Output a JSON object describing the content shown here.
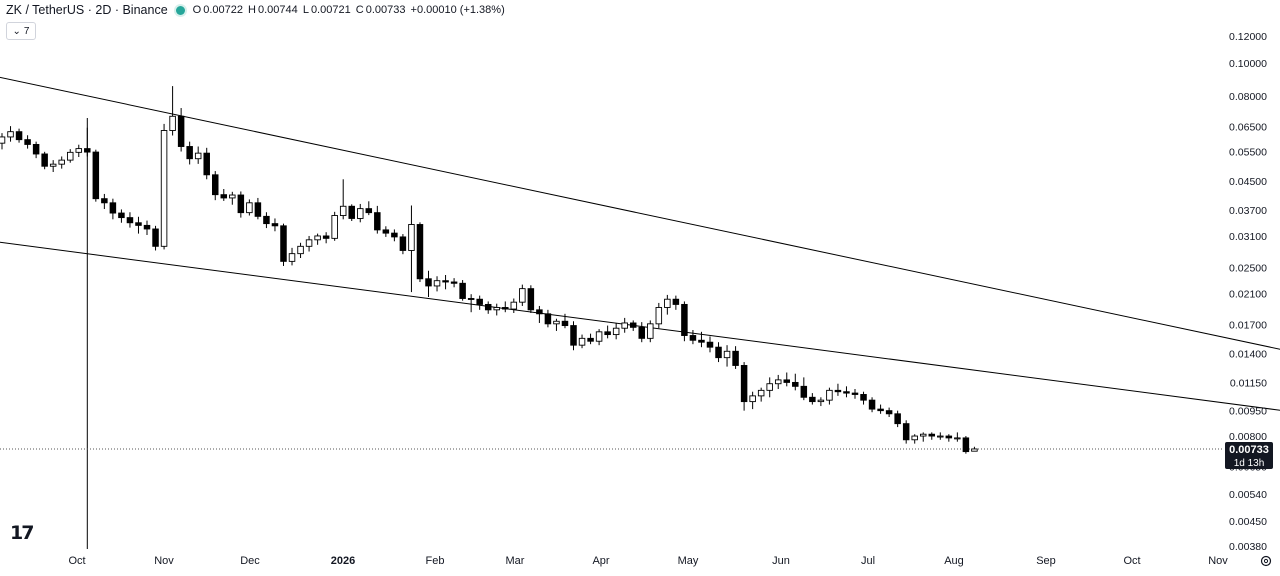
{
  "header": {
    "symbol": "ZK / TetherUS · 2D · Binance",
    "open_label": "O",
    "open": "0.00722",
    "high_label": "H",
    "high": "0.00744",
    "low_label": "L",
    "low": "0.00721",
    "close_label": "C",
    "close": "0.00733",
    "change": "+0.00010 (+1.38%)",
    "indicator_count": "7"
  },
  "colors": {
    "up": "#ffffff",
    "down": "#000000",
    "outline": "#000000",
    "trendline": "#000000",
    "price_tag_bg": "#131722",
    "price_tag_fg": "#ffffff"
  },
  "price_tag": {
    "price": "0.00733",
    "countdown": "1d 13h"
  },
  "logo_text": "17",
  "chart_data": {
    "type": "candlestick",
    "title": "",
    "xlabel": "",
    "ylabel": "",
    "y_scale": "log",
    "ylim": [
      0.0038,
      0.125
    ],
    "grid": false,
    "y_ticks": [
      "0.12000",
      "0.10000",
      "0.08000",
      "0.06500",
      "0.05500",
      "0.04500",
      "0.03700",
      "0.03100",
      "0.02500",
      "0.02100",
      "0.01700",
      "0.01400",
      "0.01150",
      "0.00950",
      "0.00800",
      "0.00650",
      "0.00540",
      "0.00450",
      "0.00380"
    ],
    "x_ticks": [
      "Oct",
      "Nov",
      "Dec",
      "2026",
      "Feb",
      "Mar",
      "Apr",
      "May",
      "Jun",
      "Jul",
      "Aug",
      "Sep",
      "Oct",
      "Nov"
    ],
    "last_price": 0.00733,
    "candles": [
      {
        "o": 0.0581,
        "h": 0.0622,
        "l": 0.0557,
        "c": 0.0606
      },
      {
        "o": 0.0606,
        "h": 0.0652,
        "l": 0.0587,
        "c": 0.0628
      },
      {
        "o": 0.0628,
        "h": 0.0641,
        "l": 0.0583,
        "c": 0.0595
      },
      {
        "o": 0.0595,
        "h": 0.0613,
        "l": 0.056,
        "c": 0.0576
      },
      {
        "o": 0.0576,
        "h": 0.0587,
        "l": 0.0525,
        "c": 0.054
      },
      {
        "o": 0.054,
        "h": 0.0548,
        "l": 0.0487,
        "c": 0.0497
      },
      {
        "o": 0.0497,
        "h": 0.0518,
        "l": 0.0478,
        "c": 0.0504
      },
      {
        "o": 0.0504,
        "h": 0.0531,
        "l": 0.0489,
        "c": 0.0518
      },
      {
        "o": 0.0518,
        "h": 0.0558,
        "l": 0.0509,
        "c": 0.0546
      },
      {
        "o": 0.0546,
        "h": 0.0575,
        "l": 0.0529,
        "c": 0.056
      },
      {
        "o": 0.056,
        "h": 0.0645,
        "l": 0.0531,
        "c": 0.0547
      },
      {
        "o": 0.0547,
        "h": 0.0556,
        "l": 0.0391,
        "c": 0.0399
      },
      {
        "o": 0.0399,
        "h": 0.0412,
        "l": 0.0372,
        "c": 0.0388
      },
      {
        "o": 0.0388,
        "h": 0.0399,
        "l": 0.0347,
        "c": 0.0362
      },
      {
        "o": 0.0362,
        "h": 0.0371,
        "l": 0.0339,
        "c": 0.0351
      },
      {
        "o": 0.0351,
        "h": 0.0364,
        "l": 0.0328,
        "c": 0.0339
      },
      {
        "o": 0.0339,
        "h": 0.0353,
        "l": 0.0315,
        "c": 0.0333
      },
      {
        "o": 0.0333,
        "h": 0.0344,
        "l": 0.0312,
        "c": 0.0325
      },
      {
        "o": 0.0325,
        "h": 0.0332,
        "l": 0.0281,
        "c": 0.0289
      },
      {
        "o": 0.0289,
        "h": 0.0662,
        "l": 0.0283,
        "c": 0.0633
      },
      {
        "o": 0.0633,
        "h": 0.0855,
        "l": 0.0612,
        "c": 0.0697
      },
      {
        "o": 0.0697,
        "h": 0.0737,
        "l": 0.0549,
        "c": 0.0568
      },
      {
        "o": 0.0568,
        "h": 0.0587,
        "l": 0.0503,
        "c": 0.0523
      },
      {
        "o": 0.0523,
        "h": 0.0568,
        "l": 0.0505,
        "c": 0.0543
      },
      {
        "o": 0.0543,
        "h": 0.0563,
        "l": 0.0455,
        "c": 0.0469
      },
      {
        "o": 0.0469,
        "h": 0.0481,
        "l": 0.0395,
        "c": 0.041
      },
      {
        "o": 0.041,
        "h": 0.0426,
        "l": 0.0393,
        "c": 0.0401
      },
      {
        "o": 0.0401,
        "h": 0.0418,
        "l": 0.0383,
        "c": 0.0409
      },
      {
        "o": 0.0409,
        "h": 0.0419,
        "l": 0.0351,
        "c": 0.0363
      },
      {
        "o": 0.0363,
        "h": 0.0397,
        "l": 0.0356,
        "c": 0.0388
      },
      {
        "o": 0.0388,
        "h": 0.0401,
        "l": 0.0347,
        "c": 0.0354
      },
      {
        "o": 0.0354,
        "h": 0.0364,
        "l": 0.0327,
        "c": 0.0337
      },
      {
        "o": 0.0337,
        "h": 0.0349,
        "l": 0.032,
        "c": 0.0332
      },
      {
        "o": 0.0332,
        "h": 0.0337,
        "l": 0.0253,
        "c": 0.0261
      },
      {
        "o": 0.0261,
        "h": 0.0286,
        "l": 0.0254,
        "c": 0.0275
      },
      {
        "o": 0.0275,
        "h": 0.0296,
        "l": 0.0267,
        "c": 0.0289
      },
      {
        "o": 0.0289,
        "h": 0.031,
        "l": 0.0279,
        "c": 0.0302
      },
      {
        "o": 0.0302,
        "h": 0.0315,
        "l": 0.0292,
        "c": 0.031
      },
      {
        "o": 0.031,
        "h": 0.0318,
        "l": 0.0295,
        "c": 0.0305
      },
      {
        "o": 0.0305,
        "h": 0.0365,
        "l": 0.03,
        "c": 0.0356
      },
      {
        "o": 0.0356,
        "h": 0.0455,
        "l": 0.0347,
        "c": 0.0379
      },
      {
        "o": 0.0379,
        "h": 0.0384,
        "l": 0.0343,
        "c": 0.0349
      },
      {
        "o": 0.0349,
        "h": 0.0385,
        "l": 0.034,
        "c": 0.0373
      },
      {
        "o": 0.0373,
        "h": 0.0392,
        "l": 0.0357,
        "c": 0.0363
      },
      {
        "o": 0.0363,
        "h": 0.038,
        "l": 0.0315,
        "c": 0.0323
      },
      {
        "o": 0.0323,
        "h": 0.0331,
        "l": 0.0308,
        "c": 0.0316
      },
      {
        "o": 0.0316,
        "h": 0.0324,
        "l": 0.0299,
        "c": 0.0308
      },
      {
        "o": 0.0308,
        "h": 0.0314,
        "l": 0.0274,
        "c": 0.0281
      },
      {
        "o": 0.0281,
        "h": 0.0381,
        "l": 0.0212,
        "c": 0.0335
      },
      {
        "o": 0.0335,
        "h": 0.034,
        "l": 0.0227,
        "c": 0.0232
      },
      {
        "o": 0.0232,
        "h": 0.0245,
        "l": 0.0205,
        "c": 0.0221
      },
      {
        "o": 0.0221,
        "h": 0.0236,
        "l": 0.0213,
        "c": 0.0229
      },
      {
        "o": 0.0229,
        "h": 0.0238,
        "l": 0.0216,
        "c": 0.0227
      },
      {
        "o": 0.0227,
        "h": 0.0233,
        "l": 0.0219,
        "c": 0.0225
      },
      {
        "o": 0.0225,
        "h": 0.023,
        "l": 0.02,
        "c": 0.0203
      },
      {
        "o": 0.0203,
        "h": 0.0209,
        "l": 0.0185,
        "c": 0.0202
      },
      {
        "o": 0.0202,
        "h": 0.0207,
        "l": 0.0188,
        "c": 0.0195
      },
      {
        "o": 0.0195,
        "h": 0.0199,
        "l": 0.0183,
        "c": 0.0188
      },
      {
        "o": 0.0188,
        "h": 0.0196,
        "l": 0.0181,
        "c": 0.0191
      },
      {
        "o": 0.0191,
        "h": 0.0199,
        "l": 0.0185,
        "c": 0.0189
      },
      {
        "o": 0.0189,
        "h": 0.0203,
        "l": 0.0184,
        "c": 0.0198
      },
      {
        "o": 0.0198,
        "h": 0.0223,
        "l": 0.0193,
        "c": 0.0217
      },
      {
        "o": 0.0217,
        "h": 0.0222,
        "l": 0.0184,
        "c": 0.0188
      },
      {
        "o": 0.0188,
        "h": 0.0193,
        "l": 0.0172,
        "c": 0.0183
      },
      {
        "o": 0.0183,
        "h": 0.0188,
        "l": 0.0167,
        "c": 0.0171
      },
      {
        "o": 0.0171,
        "h": 0.0177,
        "l": 0.0163,
        "c": 0.0174
      },
      {
        "o": 0.0174,
        "h": 0.0183,
        "l": 0.0166,
        "c": 0.0169
      },
      {
        "o": 0.0169,
        "h": 0.0174,
        "l": 0.0143,
        "c": 0.0148
      },
      {
        "o": 0.0148,
        "h": 0.0159,
        "l": 0.0145,
        "c": 0.0155
      },
      {
        "o": 0.0155,
        "h": 0.016,
        "l": 0.0149,
        "c": 0.0152
      },
      {
        "o": 0.0152,
        "h": 0.0165,
        "l": 0.0148,
        "c": 0.0162
      },
      {
        "o": 0.0162,
        "h": 0.0169,
        "l": 0.0155,
        "c": 0.0159
      },
      {
        "o": 0.0159,
        "h": 0.0172,
        "l": 0.0154,
        "c": 0.0166
      },
      {
        "o": 0.0166,
        "h": 0.0178,
        "l": 0.0161,
        "c": 0.0172
      },
      {
        "o": 0.0172,
        "h": 0.0175,
        "l": 0.0163,
        "c": 0.0167
      },
      {
        "o": 0.0167,
        "h": 0.0173,
        "l": 0.0151,
        "c": 0.0155
      },
      {
        "o": 0.0155,
        "h": 0.0175,
        "l": 0.0151,
        "c": 0.0171
      },
      {
        "o": 0.0171,
        "h": 0.0197,
        "l": 0.0166,
        "c": 0.0191
      },
      {
        "o": 0.0191,
        "h": 0.0208,
        "l": 0.0182,
        "c": 0.0202
      },
      {
        "o": 0.0202,
        "h": 0.0207,
        "l": 0.0188,
        "c": 0.0195
      },
      {
        "o": 0.0195,
        "h": 0.0199,
        "l": 0.0152,
        "c": 0.0158
      },
      {
        "o": 0.0158,
        "h": 0.0164,
        "l": 0.0149,
        "c": 0.0153
      },
      {
        "o": 0.0153,
        "h": 0.0162,
        "l": 0.0146,
        "c": 0.0151
      },
      {
        "o": 0.0151,
        "h": 0.0157,
        "l": 0.0141,
        "c": 0.0146
      },
      {
        "o": 0.0146,
        "h": 0.0151,
        "l": 0.0132,
        "c": 0.0136
      },
      {
        "o": 0.0136,
        "h": 0.0148,
        "l": 0.0128,
        "c": 0.0142
      },
      {
        "o": 0.0142,
        "h": 0.0147,
        "l": 0.0126,
        "c": 0.0129
      },
      {
        "o": 0.0129,
        "h": 0.0132,
        "l": 0.0095,
        "c": 0.0101
      },
      {
        "o": 0.0101,
        "h": 0.0108,
        "l": 0.0096,
        "c": 0.0105
      },
      {
        "o": 0.0105,
        "h": 0.0111,
        "l": 0.0101,
        "c": 0.0109
      },
      {
        "o": 0.0109,
        "h": 0.0119,
        "l": 0.0104,
        "c": 0.0114
      },
      {
        "o": 0.0114,
        "h": 0.0121,
        "l": 0.011,
        "c": 0.0117
      },
      {
        "o": 0.0117,
        "h": 0.0123,
        "l": 0.0112,
        "c": 0.0115
      },
      {
        "o": 0.0115,
        "h": 0.0122,
        "l": 0.0109,
        "c": 0.0112
      },
      {
        "o": 0.0112,
        "h": 0.0119,
        "l": 0.0102,
        "c": 0.0104
      },
      {
        "o": 0.0104,
        "h": 0.0107,
        "l": 0.0099,
        "c": 0.0101
      },
      {
        "o": 0.0101,
        "h": 0.0104,
        "l": 0.0098,
        "c": 0.0102
      },
      {
        "o": 0.0102,
        "h": 0.0111,
        "l": 0.0099,
        "c": 0.0109
      },
      {
        "o": 0.0109,
        "h": 0.0114,
        "l": 0.0105,
        "c": 0.0108
      },
      {
        "o": 0.0108,
        "h": 0.0112,
        "l": 0.0104,
        "c": 0.0107
      },
      {
        "o": 0.0107,
        "h": 0.011,
        "l": 0.0103,
        "c": 0.0106
      },
      {
        "o": 0.0106,
        "h": 0.0108,
        "l": 0.0099,
        "c": 0.0102
      },
      {
        "o": 0.0102,
        "h": 0.0104,
        "l": 0.0094,
        "c": 0.0096
      },
      {
        "o": 0.0096,
        "h": 0.0099,
        "l": 0.0093,
        "c": 0.0095
      },
      {
        "o": 0.0095,
        "h": 0.0097,
        "l": 0.0091,
        "c": 0.0093
      },
      {
        "o": 0.0093,
        "h": 0.0095,
        "l": 0.0085,
        "c": 0.0087
      },
      {
        "o": 0.0087,
        "h": 0.0089,
        "l": 0.0076,
        "c": 0.0078
      },
      {
        "o": 0.0078,
        "h": 0.0081,
        "l": 0.0076,
        "c": 0.008
      },
      {
        "o": 0.008,
        "h": 0.0082,
        "l": 0.0077,
        "c": 0.0081
      },
      {
        "o": 0.0081,
        "h": 0.0082,
        "l": 0.0078,
        "c": 0.008
      },
      {
        "o": 0.008,
        "h": 0.0082,
        "l": 0.0078,
        "c": 0.008
      },
      {
        "o": 0.008,
        "h": 0.0081,
        "l": 0.0077,
        "c": 0.0079
      },
      {
        "o": 0.0079,
        "h": 0.0082,
        "l": 0.0077,
        "c": 0.0079
      },
      {
        "o": 0.0079,
        "h": 0.008,
        "l": 0.0071,
        "c": 0.0072
      },
      {
        "o": 0.00722,
        "h": 0.00744,
        "l": 0.00721,
        "c": 0.00733
      }
    ],
    "trendlines": [
      {
        "name": "upper",
        "from": {
          "bar": -4,
          "price": 0.095
        },
        "to": {
          "bar": 211,
          "price": 0.0068
        }
      },
      {
        "name": "lower",
        "from": {
          "bar": -20,
          "price": 0.0345
        },
        "to": {
          "bar": 208,
          "price": 0.00613
        }
      }
    ],
    "vertical_line": {
      "bar": 10
    }
  }
}
